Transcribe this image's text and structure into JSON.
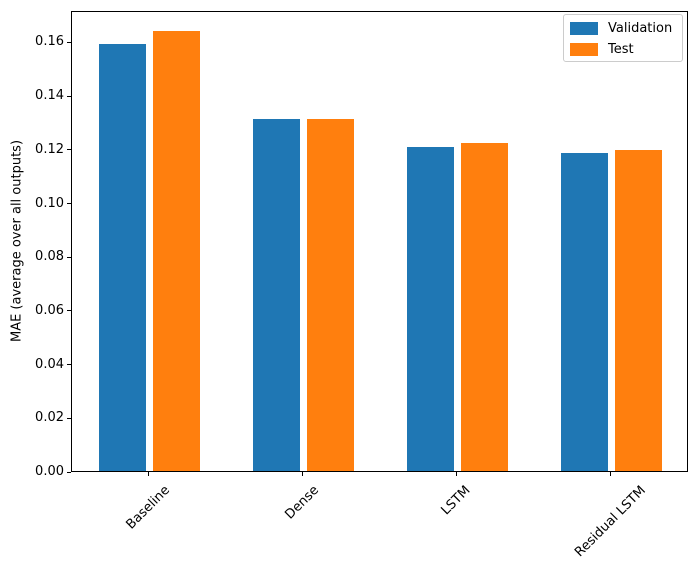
{
  "chart_data": {
    "type": "bar",
    "title": "",
    "categories": [
      "Baseline",
      "Dense",
      "LSTM",
      "Residual LSTM"
    ],
    "series": [
      {
        "name": "Validation",
        "color": "#1f77b4",
        "values": [
          0.159,
          0.131,
          0.1205,
          0.1185
        ]
      },
      {
        "name": "Test",
        "color": "#ff7f0e",
        "values": [
          0.164,
          0.131,
          0.122,
          0.1195
        ]
      }
    ],
    "xlabel": "",
    "ylabel": "MAE (average over all outputs)",
    "ylim": [
      0,
      0.1717
    ],
    "yticks": [
      0.0,
      0.02,
      0.04,
      0.06,
      0.08,
      0.1,
      0.12,
      0.14,
      0.16
    ],
    "ytick_labels": [
      "0.00",
      "0.02",
      "0.04",
      "0.06",
      "0.08",
      "0.10",
      "0.12",
      "0.14",
      "0.16"
    ],
    "xtick_rotation_deg": 45,
    "grid": false,
    "legend": {
      "position": "upper right",
      "entries": [
        "Validation",
        "Test"
      ]
    },
    "colors": {
      "validation": "#1f77b4",
      "test": "#ff7f0e",
      "axes_edge": "#000000",
      "legend_border": "#cccccc",
      "background": "#ffffff"
    }
  }
}
